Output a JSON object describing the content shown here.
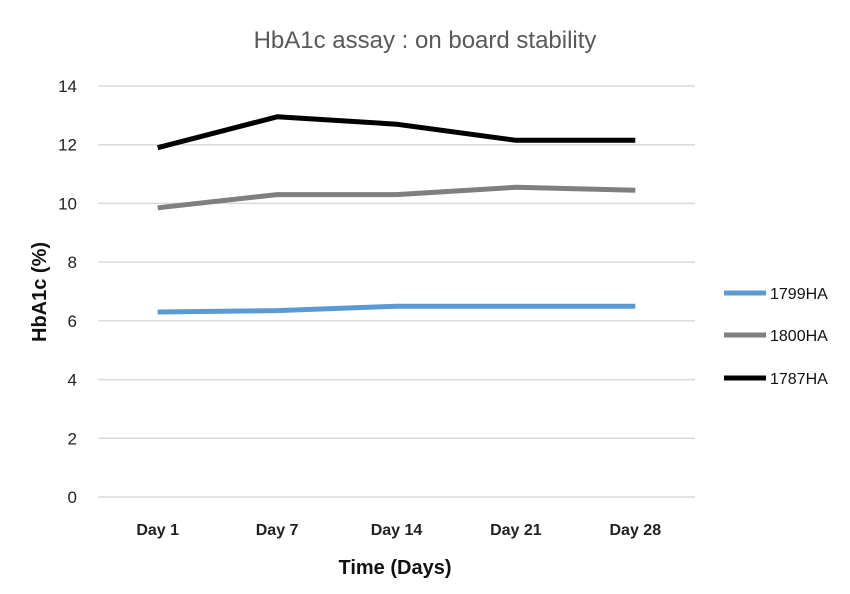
{
  "chart_data": {
    "type": "line",
    "title": "HbA1c assay : on board stability",
    "xlabel": "Time (Days)",
    "ylabel": "HbA1c (%)",
    "categories": [
      "Day 1",
      "Day 7",
      "Day 14",
      "Day 21",
      "Day 28"
    ],
    "ylim": [
      0,
      14
    ],
    "yticks": [
      "0",
      "2",
      "4",
      "6",
      "8",
      "10",
      "12",
      "14"
    ],
    "grid": true,
    "legend_position": "right",
    "series": [
      {
        "name": "1799HA",
        "color": "#5b9bd5",
        "values": [
          6.3,
          6.35,
          6.5,
          6.5,
          6.5
        ]
      },
      {
        "name": "1800HA",
        "color": "#7f7f7f",
        "values": [
          9.85,
          10.3,
          10.3,
          10.55,
          10.45
        ]
      },
      {
        "name": "1787HA",
        "color": "#000000",
        "values": [
          11.9,
          12.95,
          12.7,
          12.15,
          12.15
        ]
      }
    ]
  }
}
